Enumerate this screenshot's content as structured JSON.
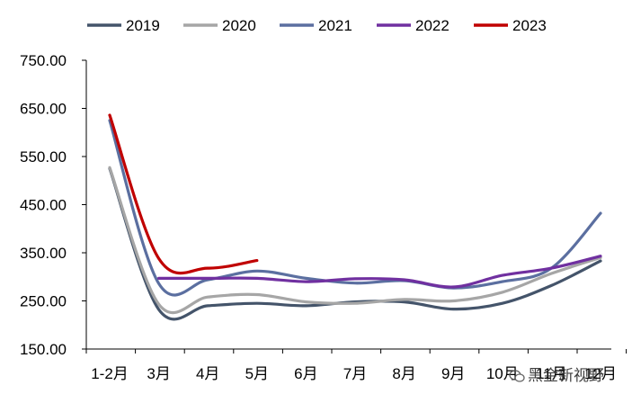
{
  "chart_data": {
    "type": "line",
    "categories": [
      "1-2月",
      "3月",
      "4月",
      "5月",
      "6月",
      "7月",
      "8月",
      "9月",
      "10月",
      "11月",
      "12月"
    ],
    "ylim": [
      150,
      750
    ],
    "yticks": [
      "150.00",
      "250.00",
      "350.00",
      "450.00",
      "550.00",
      "650.00",
      "750.00"
    ],
    "ytick_values": [
      150,
      250,
      350,
      450,
      550,
      650,
      750
    ],
    "legend_position": "top",
    "grid": false,
    "series": [
      {
        "name": "2019",
        "color": "#44546a",
        "values": [
          525,
          232,
          240,
          245,
          240,
          248,
          248,
          233,
          245,
          282,
          333
        ]
      },
      {
        "name": "2020",
        "color": "#a6a6a6",
        "values": [
          527,
          243,
          258,
          263,
          248,
          245,
          253,
          250,
          268,
          307,
          340
        ]
      },
      {
        "name": "2021",
        "color": "#5b6fa0",
        "values": [
          625,
          286,
          294,
          312,
          297,
          287,
          292,
          277,
          290,
          318,
          432
        ]
      },
      {
        "name": "2022",
        "color": "#7030a0",
        "values": [
          null,
          297,
          297,
          297,
          290,
          296,
          294,
          279,
          303,
          318,
          343
        ]
      },
      {
        "name": "2023",
        "color": "#c00000",
        "values": [
          636,
          338,
          318,
          334,
          null,
          null,
          null,
          null,
          null,
          null,
          null
        ]
      }
    ]
  },
  "watermark": {
    "text": "黑金新视野",
    "icon": "wechat-icon"
  }
}
